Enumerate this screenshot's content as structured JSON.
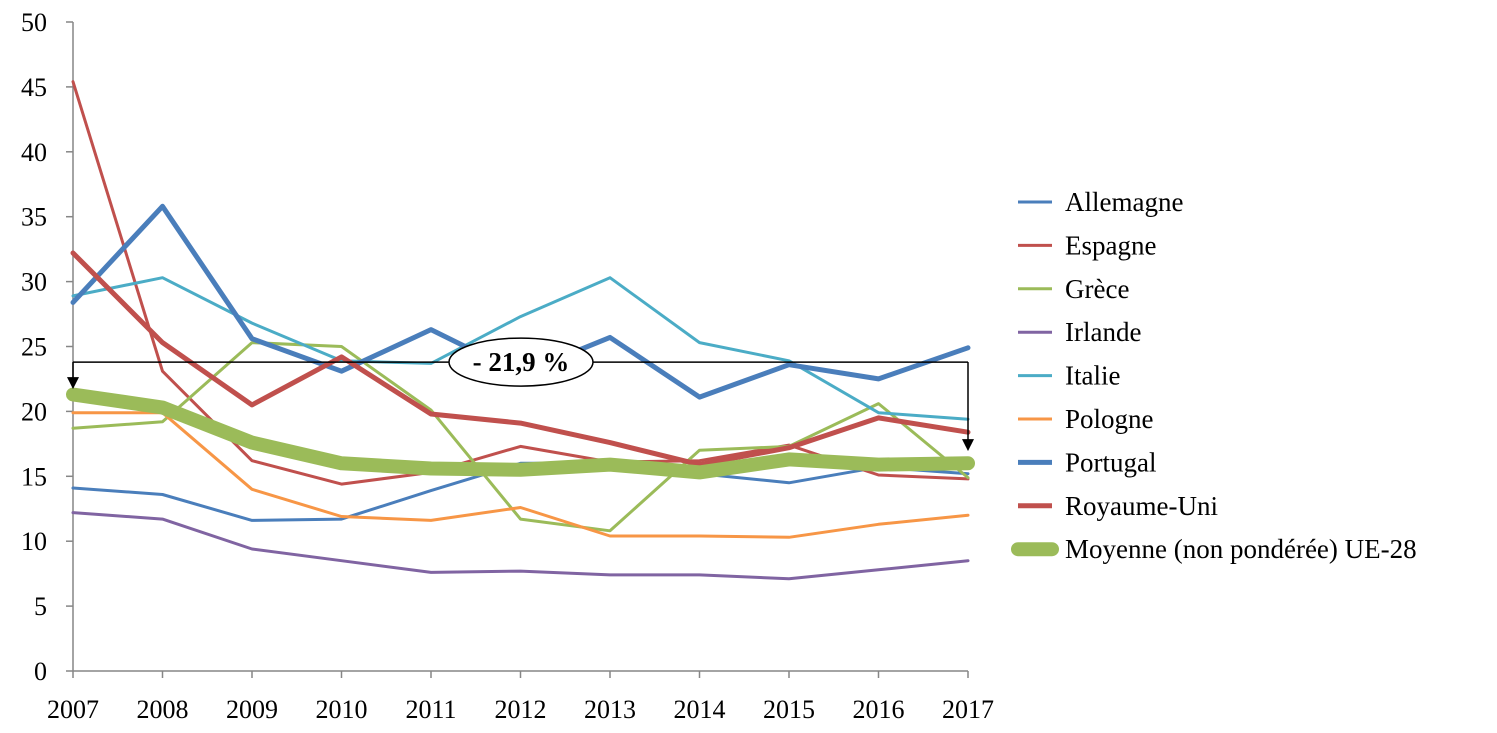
{
  "chart_data": {
    "type": "line",
    "title": "",
    "xlabel": "",
    "ylabel": "",
    "x": [
      "2007",
      "2008",
      "2009",
      "2010",
      "2011",
      "2012",
      "2013",
      "2014",
      "2015",
      "2016",
      "2017"
    ],
    "ylim": [
      0,
      50
    ],
    "yticks": [
      "0",
      "5",
      "10",
      "15",
      "20",
      "25",
      "30",
      "35",
      "40",
      "45",
      "50"
    ],
    "grid": false,
    "legend_position": "right",
    "series": [
      {
        "name": "Allemagne",
        "color": "#4a7ebb",
        "width": 3,
        "values": [
          14.1,
          13.6,
          11.6,
          11.7,
          13.9,
          16.0,
          16.0,
          15.2,
          14.5,
          15.7,
          15.2
        ]
      },
      {
        "name": "Espagne",
        "color": "#c0504d",
        "width": 3,
        "values": [
          45.4,
          23.1,
          16.2,
          14.4,
          15.3,
          17.3,
          16.1,
          16.2,
          17.4,
          15.1,
          14.8
        ]
      },
      {
        "name": "Grèce",
        "color": "#9bbb59",
        "width": 3,
        "values": [
          18.7,
          19.2,
          25.3,
          25.0,
          20.1,
          11.7,
          10.8,
          17.0,
          17.3,
          20.6,
          14.9
        ]
      },
      {
        "name": "Irlande",
        "color": "#8064a2",
        "width": 3,
        "values": [
          12.2,
          11.7,
          9.4,
          8.5,
          7.6,
          7.7,
          7.4,
          7.4,
          7.1,
          7.8,
          8.5
        ]
      },
      {
        "name": "Italie",
        "color": "#4bacc6",
        "width": 3,
        "values": [
          28.9,
          30.3,
          26.8,
          23.9,
          23.7,
          27.3,
          30.3,
          25.3,
          23.9,
          19.9,
          19.4
        ]
      },
      {
        "name": "Pologne",
        "color": "#f79646",
        "width": 3,
        "values": [
          19.9,
          19.9,
          14.0,
          11.9,
          11.6,
          12.6,
          10.4,
          10.4,
          10.3,
          11.3,
          12.0
        ]
      },
      {
        "name": "Portugal",
        "color": "#4a7ebb",
        "width": 5,
        "values": [
          28.4,
          35.8,
          25.6,
          23.1,
          26.3,
          22.9,
          25.7,
          21.1,
          23.6,
          22.5,
          24.9
        ]
      },
      {
        "name": "Royaume-Uni",
        "color": "#c0504d",
        "width": 5,
        "values": [
          32.2,
          25.3,
          20.5,
          24.2,
          19.8,
          19.1,
          17.6,
          15.9,
          17.2,
          19.5,
          18.4
        ]
      },
      {
        "name": "Moyenne (non pondérée) UE-28",
        "color": "#9bbb59",
        "width": 14,
        "values": [
          21.3,
          20.3,
          17.6,
          16.0,
          15.6,
          15.5,
          15.9,
          15.3,
          16.3,
          15.9,
          16.0
        ]
      }
    ],
    "annotation": {
      "label": "- 21,9 %",
      "from": "2007",
      "to": "2017",
      "level": 23.8
    }
  }
}
